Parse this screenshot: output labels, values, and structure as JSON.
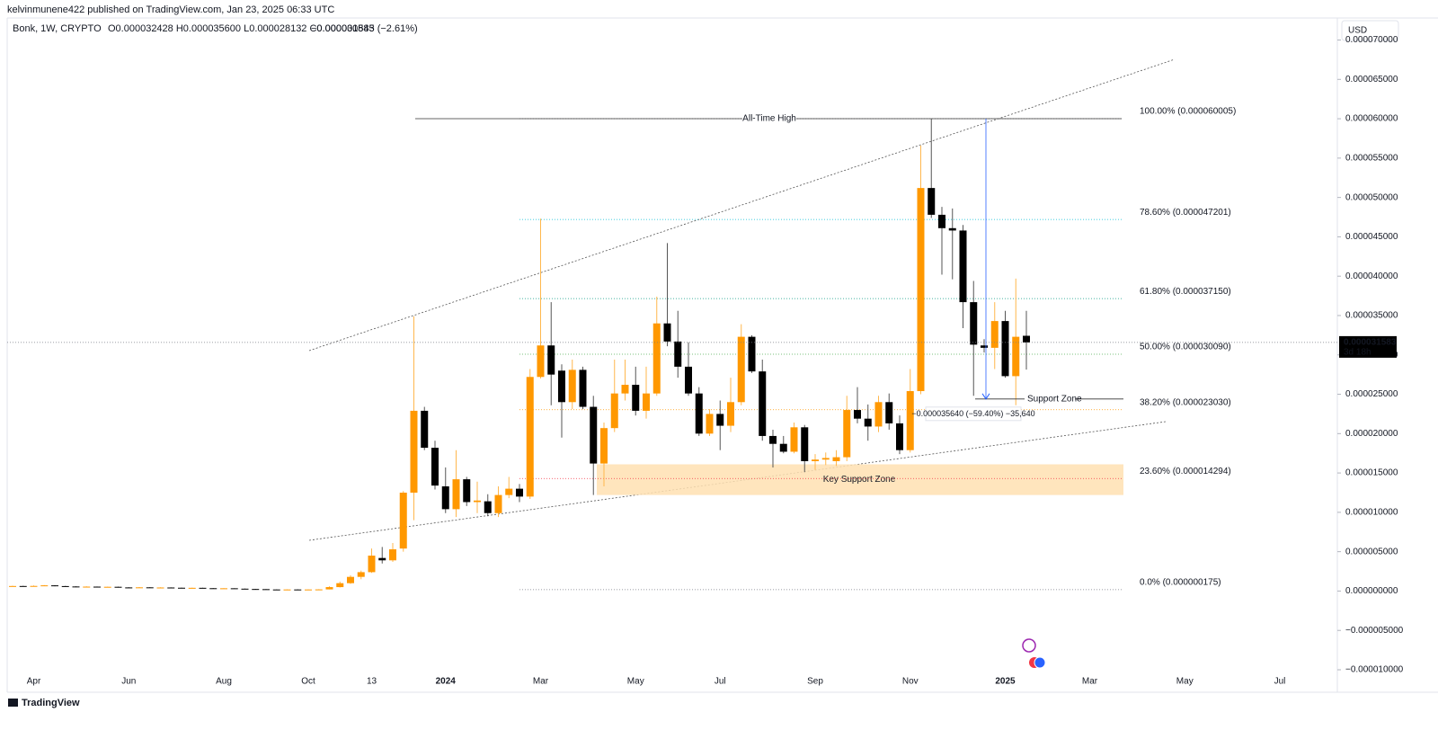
{
  "chart_data": {
    "type": "candlestick",
    "published": "kelvinmunene422 published on TradingView.com, Jan 23, 2025 06:33 UTC",
    "symbol": "Bonk, 1W, CRYPTO",
    "ohlc_header": "O0.000032428 H0.000035600 L0.000028132 C0.000031583",
    "change": "−0.000000845 (−2.61%)",
    "currency": "USD",
    "countdown": "3d 18h",
    "brand": "TradingView",
    "up_color": "#ff9800",
    "down_color": "#000000",
    "categories": [
      null,
      null,
      "Apr",
      null,
      null,
      null,
      null,
      null,
      null,
      null,
      null,
      "Jun",
      null,
      null,
      null,
      null,
      null,
      null,
      null,
      null,
      "Aug",
      null,
      null,
      null,
      null,
      null,
      null,
      null,
      "Oct",
      null,
      null,
      null,
      null,
      null,
      "13",
      null,
      null,
      null,
      null,
      null,
      null,
      "2024",
      null,
      null,
      null,
      null,
      null,
      null,
      null,
      null,
      "Mar",
      null,
      null,
      null,
      null,
      null,
      null,
      null,
      null,
      "May",
      null,
      null,
      null,
      null,
      null,
      null,
      null,
      "Jul",
      null,
      null,
      null,
      null,
      null,
      null,
      null,
      null,
      "Sep",
      null,
      null,
      null,
      null,
      null,
      null,
      null,
      null,
      "Nov",
      null,
      null,
      null,
      null,
      null,
      null,
      null,
      null,
      "2025",
      null,
      null,
      null,
      null,
      null,
      null,
      null,
      "Mar",
      null,
      null,
      null,
      null,
      null,
      null,
      null,
      null,
      "May",
      null,
      null,
      null,
      null,
      null,
      null,
      null,
      null,
      "Jul"
    ],
    "open": [
      6e-07,
      6.4e-07,
      6e-07,
      6.5e-07,
      7.2e-07,
      6.3e-07,
      5.8e-07,
      5.2e-07,
      5.6e-07,
      5e-07,
      5.4e-07,
      4.6e-07,
      4.4e-07,
      4.7e-07,
      4.3e-07,
      4.5e-07,
      4.2e-07,
      3.9e-07,
      4.1e-07,
      3.6e-07,
      3.3e-07,
      3.5e-07,
      3e-07,
      2.6e-07,
      2.4e-07,
      2e-07,
      1.8e-07,
      2e-07,
      1.9e-07,
      2e-07,
      2.1e-07,
      5e-07,
      1e-06,
      1.8e-06,
      2.4e-06,
      4.2e-06,
      3.9e-06,
      5.4e-06,
      1.25e-05,
      2.29e-05,
      1.82e-05,
      1.33e-05,
      1.04e-05,
      1.42e-05,
      1.13e-05,
      1.14e-05,
      9.9e-06,
      1.22e-05,
      1.3e-05,
      1.2e-05,
      2.72e-05,
      3.12e-05,
      2.8e-05,
      2.4e-05,
      2.81e-05,
      2.34e-05,
      1.62e-05,
      2.07e-05,
      2.51e-05,
      2.62e-05,
      2.29e-05,
      2.51e-05,
      3.4e-05,
      3.17e-05,
      2.85e-05,
      2.51e-05,
      2e-05,
      2.25e-05,
      2.1e-05,
      2.4e-05,
      3.23e-05,
      2.79e-05,
      1.97e-05,
      1.87e-05,
      1.77e-05,
      2.08e-05,
      1.65e-05,
      1.67e-05,
      1.65e-05,
      1.7e-05,
      2.3e-05,
      2.19e-05,
      2.09e-05,
      2.4e-05,
      2.13e-05,
      1.79e-05,
      2.54e-05,
      5.12e-05,
      4.78e-05,
      4.61e-05,
      4.58e-05,
      3.67e-05,
      3.12e-05,
      3.09e-05,
      3.43e-05,
      2.73e-05,
      3.2428e-05,
      null,
      null,
      null,
      null,
      null,
      null,
      null,
      null,
      null,
      null,
      null,
      null,
      null,
      null,
      null,
      null,
      null,
      null,
      null,
      null,
      null,
      null,
      null,
      null
    ],
    "high": [
      6.8e-07,
      6.7e-07,
      7e-07,
      7.6e-07,
      7.5e-07,
      6.6e-07,
      6e-07,
      6e-07,
      5.8e-07,
      5.6e-07,
      5.6e-07,
      4.9e-07,
      5e-07,
      4.9e-07,
      4.8e-07,
      4.7e-07,
      4.4e-07,
      4.3e-07,
      4.2e-07,
      3.8e-07,
      3.7e-07,
      3.6e-07,
      3.2e-07,
      2.8e-07,
      2.5e-07,
      2.2e-07,
      2.2e-07,
      2.3e-07,
      2.2e-07,
      2.4e-07,
      6e-07,
      1.2e-06,
      2e-06,
      2.6e-06,
      5.4e-06,
      5.6e-06,
      6.1e-06,
      1.27e-05,
      3.49e-05,
      2.34e-05,
      1.91e-05,
      1.57e-05,
      1.79e-05,
      1.45e-05,
      1.39e-05,
      1.23e-05,
      1.33e-05,
      1.45e-05,
      1.36e-05,
      2.82e-05,
      4.73e-05,
      3.67e-05,
      2.88e-05,
      2.94e-05,
      2.85e-05,
      2.48e-05,
      2.14e-05,
      2.94e-05,
      2.94e-05,
      2.85e-05,
      2.85e-05,
      3.74e-05,
      4.42e-05,
      3.56e-05,
      3.16e-05,
      2.59e-05,
      2.31e-05,
      2.42e-05,
      2.71e-05,
      3.39e-05,
      3.25e-05,
      2.94e-05,
      2.05e-05,
      1.97e-05,
      2.14e-05,
      2.11e-05,
      1.74e-05,
      1.76e-05,
      1.79e-05,
      2.48e-05,
      2.59e-05,
      2.37e-05,
      2.48e-05,
      2.51e-05,
      2.23e-05,
      2.82e-05,
      5.66e-05,
      6.0005e-05,
      4.88e-05,
      4.86e-05,
      4.65e-05,
      3.94e-05,
      3.2e-05,
      3.67e-05,
      3.56e-05,
      3.97e-05,
      3.56e-05,
      null,
      null,
      null,
      null,
      null,
      null,
      null,
      null,
      null,
      null,
      null,
      null,
      null,
      null,
      null,
      null,
      null,
      null,
      null,
      null,
      null,
      null,
      null,
      null
    ],
    "low": [
      5.7e-07,
      5.8e-07,
      5.8e-07,
      6.2e-07,
      6e-07,
      5.4e-07,
      4.9e-07,
      5e-07,
      4.8e-07,
      4.8e-07,
      4.4e-07,
      4.1e-07,
      4.2e-07,
      4.1e-07,
      4.1e-07,
      4e-07,
      3.7e-07,
      3.7e-07,
      3.4e-07,
      3.1e-07,
      3.1e-07,
      2.8e-07,
      2.4e-07,
      2.2e-07,
      1.8e-07,
      1.7e-07,
      1.6e-07,
      1.8e-07,
      1.75e-07,
      1.9e-07,
      2e-07,
      4.5e-07,
      9e-07,
      1.5e-06,
      2.3e-06,
      3.5e-06,
      3.7e-06,
      5e-06,
      9e-06,
      1.79e-05,
      1.29e-05,
      9.9e-06,
      9.4e-06,
      1.08e-05,
      9.9e-06,
      9.5e-06,
      9.4e-06,
      1.18e-05,
      1.13e-05,
      1.17e-05,
      2.7e-05,
      2.36e-05,
      1.95e-05,
      2.31e-05,
      2.31e-05,
      1.22e-05,
      1.33e-05,
      2.02e-05,
      2.42e-05,
      2.23e-05,
      2.19e-05,
      2.48e-05,
      3.11e-05,
      2.71e-05,
      2.48e-05,
      1.97e-05,
      1.97e-05,
      1.79e-05,
      2.02e-05,
      2.36e-05,
      2.77e-05,
      1.91e-05,
      1.57e-05,
      1.75e-05,
      1.75e-05,
      1.51e-05,
      1.54e-05,
      1.6e-05,
      1.59e-05,
      1.65e-05,
      2.13e-05,
      1.91e-05,
      2.02e-05,
      2.05e-05,
      1.74e-05,
      1.76e-05,
      2.5e-05,
      4.74e-05,
      4.02e-05,
      3.96e-05,
      3.34e-05,
      2.48e-05,
      3.03e-05,
      2.82e-05,
      2.71e-05,
      2.36e-05,
      2.8132e-05,
      null,
      null,
      null,
      null,
      null,
      null,
      null,
      null,
      null,
      null,
      null,
      null,
      null,
      null,
      null,
      null,
      null,
      null,
      null,
      null,
      null,
      null,
      null,
      null
    ],
    "close": [
      6.4e-07,
      6e-07,
      6.5e-07,
      7.2e-07,
      6.3e-07,
      5.8e-07,
      5.2e-07,
      5.6e-07,
      5e-07,
      5.4e-07,
      4.6e-07,
      4.4e-07,
      4.7e-07,
      4.3e-07,
      4.5e-07,
      4.2e-07,
      3.9e-07,
      4.1e-07,
      3.6e-07,
      3.3e-07,
      3.5e-07,
      3e-07,
      2.6e-07,
      2.4e-07,
      2e-07,
      1.8e-07,
      2e-07,
      1.9e-07,
      2e-07,
      2.1e-07,
      5e-07,
      1e-06,
      1.8e-06,
      2.4e-06,
      4.5e-06,
      3.9e-06,
      5.3e-06,
      1.25e-05,
      2.29e-05,
      1.82e-05,
      1.34e-05,
      1.04e-05,
      1.42e-05,
      1.13e-05,
      1.15e-05,
      9.9e-06,
      1.22e-05,
      1.3e-05,
      1.2e-05,
      2.72e-05,
      3.12e-05,
      2.75e-05,
      2.4e-05,
      2.81e-05,
      2.34e-05,
      1.62e-05,
      2.07e-05,
      2.51e-05,
      2.62e-05,
      2.29e-05,
      2.51e-05,
      3.4e-05,
      3.17e-05,
      2.85e-05,
      2.51e-05,
      2e-05,
      2.25e-05,
      2.1e-05,
      2.4e-05,
      3.23e-05,
      2.79e-05,
      1.97e-05,
      1.87e-05,
      1.77e-05,
      2.08e-05,
      1.65e-05,
      1.67e-05,
      1.69e-05,
      1.7e-05,
      2.3e-05,
      2.19e-05,
      2.09e-05,
      2.4e-05,
      2.13e-05,
      1.79e-05,
      2.54e-05,
      5.12e-05,
      4.78e-05,
      4.61e-05,
      4.58e-05,
      3.67e-05,
      3.13e-05,
      3.09e-05,
      3.43e-05,
      2.73e-05,
      3.23e-05,
      3.1583e-05,
      null,
      null,
      null,
      null,
      null,
      null,
      null,
      null,
      null,
      null,
      null,
      null,
      null,
      null,
      null,
      null,
      null,
      null,
      null,
      null,
      null,
      null,
      null,
      null
    ],
    "ylim": [
      -1.08e-05,
      7.28e-05
    ],
    "yticks": [
      {
        "value": -1e-05,
        "label": "−0.000010000"
      },
      {
        "value": -5e-06,
        "label": "−0.000005000"
      },
      {
        "value": 0,
        "label": "0.000000000"
      },
      {
        "value": 5e-06,
        "label": "0.000005000"
      },
      {
        "value": 1e-05,
        "label": "0.000010000"
      },
      {
        "value": 1.5e-05,
        "label": "0.000015000"
      },
      {
        "value": 2e-05,
        "label": "0.000020000"
      },
      {
        "value": 2.5e-05,
        "label": "0.000025000"
      },
      {
        "value": 3e-05,
        "label": "0.000030000"
      },
      {
        "value": 3.5e-05,
        "label": "0.000035000"
      },
      {
        "value": 4e-05,
        "label": "0.000040000"
      },
      {
        "value": 4.5e-05,
        "label": "0.000045000"
      },
      {
        "value": 5e-05,
        "label": "0.000050000"
      },
      {
        "value": 5.5e-05,
        "label": "0.000055000"
      },
      {
        "value": 6e-05,
        "label": "0.000060000"
      },
      {
        "value": 6.5e-05,
        "label": "0.000065000"
      },
      {
        "value": 7e-05,
        "label": "0.000070000"
      }
    ],
    "ath_label": "All-Time High",
    "fib_levels": [
      {
        "label": "100.00% (0.000060005)",
        "value": 6.0005e-05,
        "color": "#787b86"
      },
      {
        "label": "78.60% (0.000047201)",
        "value": 4.7201e-05,
        "color": "#00bcd4"
      },
      {
        "label": "61.80% (0.000037150)",
        "value": 3.715e-05,
        "color": "#089981"
      },
      {
        "label": "50.00% (0.000030090)",
        "value": 3.009e-05,
        "color": "#4caf50"
      },
      {
        "label": "38.20% (0.000023030)",
        "value": 2.303e-05,
        "color": "#ff9800"
      },
      {
        "label": "23.60% (0.000014294)",
        "value": 1.4294e-05,
        "color": "#f23645"
      },
      {
        "label": "0.0% (0.000000175)",
        "value": 1.75e-07,
        "color": "#787b86"
      }
    ],
    "key_support_zone": {
      "label": "Key Support Zone",
      "top": 1.61e-05,
      "bottom": 1.22e-05,
      "color": "#ffe0b2"
    },
    "support_zone": {
      "label": "Support Zone",
      "value": 2.44e-05
    },
    "measure_label": "−0.000035640 (−59.40%) −35,640"
  }
}
